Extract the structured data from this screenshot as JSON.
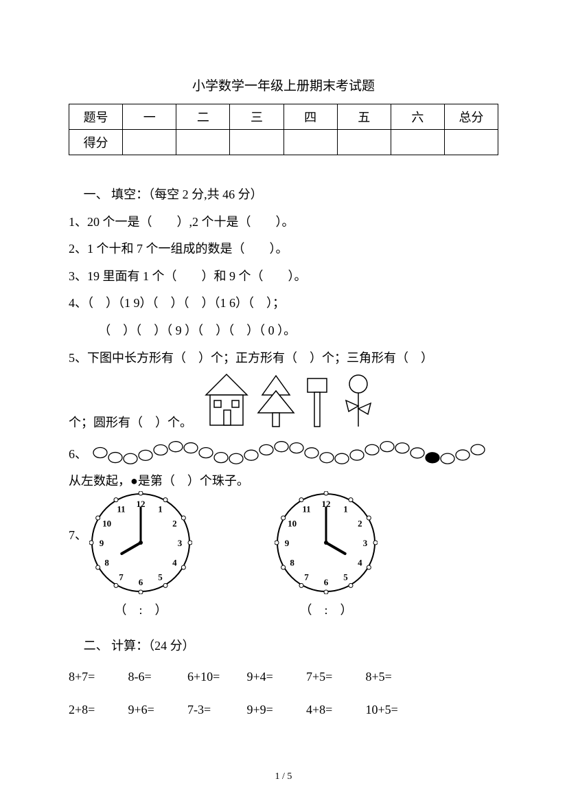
{
  "title": "小学数学一年级上册期末考试题",
  "score_table": {
    "row1": [
      "题号",
      "一",
      "二",
      "三",
      "四",
      "五",
      "六",
      "总分"
    ],
    "row2_label": "得分"
  },
  "section1": {
    "heading": "一、 填空：（每空 2 分,共 46 分）",
    "q1": "1、20 个一是（　　）,2 个十是（　　）。",
    "q2": "2、1 个十和 7 个一组成的数是（　　）。",
    "q3": "3、19 里面有 1 个（　　）和 9 个（　　）。",
    "q4a": "4、（　）（1 9）（　）（　）（1 6）（　）；",
    "q4b": "（　）（　）（ 9 ）（　）（　）（ 0 ）。",
    "q5a": "5、下图中长方形有（　）个；正方形有（　）个；三角形有（　）",
    "q5b": "个；圆形有（　）个。",
    "q6": "6、",
    "q6b": "从左数起，●是第（　）个珠子。",
    "q7": "7、",
    "clock_caption": "（　:　）"
  },
  "section2": {
    "heading": "二、 计算：（24 分）",
    "row1": [
      "8+7=",
      "8-6=",
      "6+10=",
      "9+4=",
      "7+5=",
      "8+5="
    ],
    "row2": [
      "2+8=",
      "9+6=",
      "7-3=",
      "9+9=",
      "4+8=",
      "10+5="
    ]
  },
  "page_number": "1 / 5",
  "shapes": {
    "stroke": "#000000",
    "fill": "#ffffff"
  },
  "beads": {
    "count": 26,
    "dark_index": 22,
    "radius": 10,
    "spacing": 22,
    "wave_amp": 9,
    "stroke": "#000000",
    "dark_fill": "#000000",
    "light_fill": "#ffffff"
  },
  "clock1": {
    "size": 150,
    "numbers": [
      "12",
      "1",
      "2",
      "3",
      "4",
      "5",
      "6",
      "7",
      "8",
      "9",
      "10",
      "11"
    ],
    "hour_angle": 240,
    "minute_angle": 0,
    "font_size": 13,
    "font_weight": "bold",
    "stroke": "#000000"
  },
  "clock2": {
    "size": 150,
    "numbers": [
      "12",
      "1",
      "2",
      "3",
      "4",
      "5",
      "6",
      "7",
      "8",
      "9",
      "10",
      "11"
    ],
    "hour_angle": 120,
    "minute_angle": 0,
    "font_size": 13,
    "font_weight": "bold",
    "stroke": "#000000"
  }
}
